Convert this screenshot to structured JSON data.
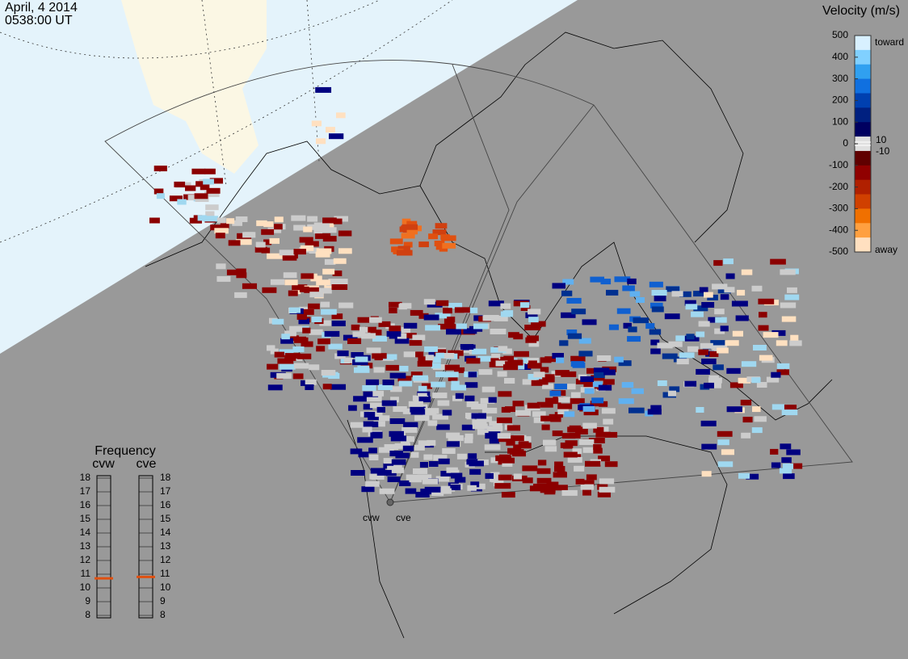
{
  "header": {
    "date": "April, 4 2014",
    "time": "0538:00 UT"
  },
  "colorbar": {
    "title": "Velocity (m/s)",
    "ticks": [
      500,
      400,
      300,
      200,
      100,
      0,
      -100,
      -200,
      -300,
      -400,
      -500
    ],
    "inner_ticks": [
      10,
      -10
    ],
    "top_label": "toward",
    "bottom_label": "away"
  },
  "frequency": {
    "title": "Frequency",
    "ticks": [
      18,
      17,
      16,
      15,
      14,
      13,
      12,
      11,
      10,
      9,
      8
    ],
    "radars": [
      {
        "name": "cvw",
        "value": 10.7
      },
      {
        "name": "cve",
        "value": 10.8
      }
    ]
  },
  "sites": [
    "cvw",
    "cve"
  ]
}
